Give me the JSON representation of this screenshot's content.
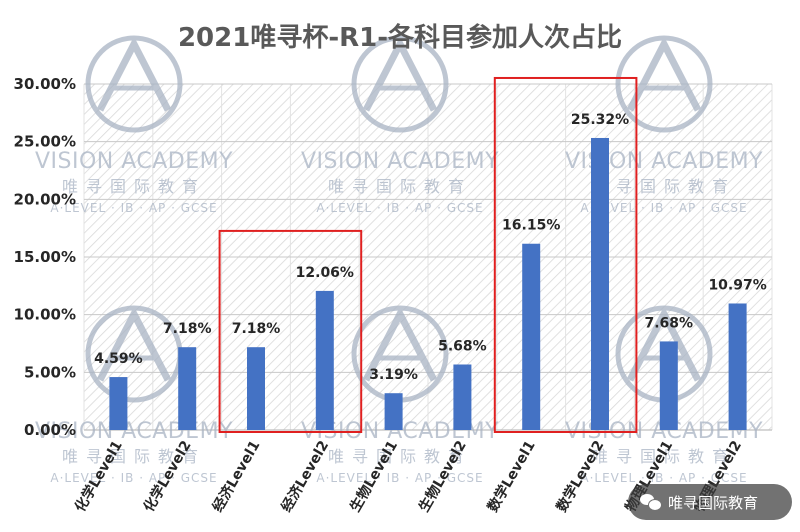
{
  "chart_data": {
    "type": "bar",
    "title": "2021唯寻杯-R1-各科目参加人次占比",
    "categories": [
      "化学Level1",
      "化学Level2",
      "经济Level1",
      "经济Level2",
      "生物Level1",
      "生物Level2",
      "数学Level1",
      "数学Level2",
      "物理Level1",
      "物理Level2"
    ],
    "values": [
      4.59,
      7.18,
      7.18,
      12.06,
      3.19,
      5.68,
      16.15,
      25.32,
      7.68,
      10.97
    ],
    "data_labels": [
      "4.59%",
      "7.18%",
      "7.18%",
      "12.06%",
      "3.19%",
      "5.68%",
      "16.15%",
      "25.32%",
      "7.68%",
      "10.97%"
    ],
    "ylim": [
      0,
      30
    ],
    "yticks": [
      0,
      5,
      10,
      15,
      20,
      25,
      30
    ],
    "ytick_labels": [
      "0.00%",
      "5.00%",
      "10.00%",
      "15.00%",
      "20.00%",
      "25.00%",
      "30.00%"
    ],
    "bar_color": "#4472c4",
    "highlight_color": "#e02020",
    "highlight_groups": [
      [
        "经济Level1",
        "经济Level2"
      ],
      [
        "数学Level1",
        "数学Level2"
      ]
    ],
    "grid": true,
    "legend": "none"
  },
  "watermark": {
    "name": "VISION ACADEMY",
    "chinese": "唯寻国际教育",
    "subtitle": "A·LEVEL · IB · AP · GCSE",
    "color": "#a9b4c4"
  },
  "brand_badge": {
    "icon": "wechat-icon",
    "label": "唯寻国际教育"
  }
}
